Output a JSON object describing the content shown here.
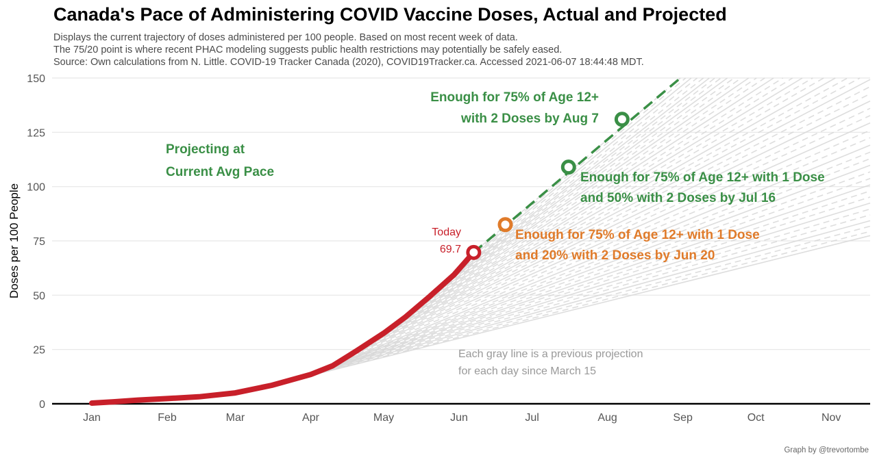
{
  "title": "Canada's Pace of Administering COVID Vaccine Doses, Actual and Projected",
  "subtitle_lines": [
    "Displays the current trajectory of doses administered per 100 people. Based on most recent week of data.",
    "The 75/20 point is where recent PHAC modeling suggests public health restrictions may potentially be safely eased.",
    "Source: Own calculations from N. Little. COVID-19 Tracker Canada (2020), COVID19Tracker.ca. Accessed 2021-06-07 18:44:48 MDT."
  ],
  "credit": "Graph by @trevortombe",
  "colors": {
    "actual": "#c8202a",
    "projection": "#3a8f46",
    "milestone_orange": "#e07b2a",
    "previous": "#d8d8d8",
    "grid": "#e6e6e6"
  },
  "chart_data": {
    "type": "line",
    "ylabel": "Doses per 100 People",
    "xlabel": "",
    "ylim": [
      0,
      150
    ],
    "yticks": [
      0,
      25,
      50,
      75,
      100,
      125,
      150
    ],
    "x_ticks": [
      {
        "label": "Jan",
        "day": 1
      },
      {
        "label": "Feb",
        "day": 32
      },
      {
        "label": "Mar",
        "day": 60
      },
      {
        "label": "Apr",
        "day": 91
      },
      {
        "label": "May",
        "day": 121
      },
      {
        "label": "Jun",
        "day": 152
      },
      {
        "label": "Jul",
        "day": 182
      },
      {
        "label": "Aug",
        "day": 213
      },
      {
        "label": "Sep",
        "day": 244
      },
      {
        "label": "Oct",
        "day": 274
      },
      {
        "label": "Nov",
        "day": 305
      }
    ],
    "series": [
      {
        "name": "Actual",
        "day": [
          1,
          10,
          20,
          32,
          45,
          60,
          75,
          91,
          100,
          110,
          121,
          130,
          140,
          150,
          158
        ],
        "doses": [
          0.3,
          0.9,
          1.7,
          2.4,
          3.2,
          5.0,
          8.5,
          13.5,
          17.5,
          24.5,
          32.5,
          40.0,
          49.5,
          59.5,
          69.7
        ]
      }
    ],
    "projection": {
      "start": [
        158,
        69.7
      ],
      "end": [
        243,
        150
      ]
    },
    "previous_projections": {
      "count": 48,
      "start_day": 74,
      "end_day": 158
    },
    "today": {
      "label": "Today",
      "value": "69.7",
      "day": 158,
      "doses": 69.7
    },
    "milestones": [
      {
        "day": 171,
        "doses": 82.5,
        "color": "orange",
        "lines": [
          "Enough for 75% of Age 12+ with 1 Dose",
          "and 20% with 2 Doses by Jun 20"
        ]
      },
      {
        "day": 197,
        "doses": 109.0,
        "color": "green",
        "lines": [
          "Enough for 75% of Age 12+ with 1 Dose",
          "and 50% with 2 Doses by Jul 16"
        ]
      },
      {
        "day": 219,
        "doses": 131.0,
        "color": "green",
        "lines": [
          "Enough for 75% of Age 12+",
          "with 2 Doses by Aug 7"
        ]
      }
    ],
    "annotations": {
      "projecting": [
        "Projecting at",
        "Current Avg Pace"
      ],
      "gray_note": [
        "Each gray line is a previous projection",
        "for each day since March 15"
      ]
    }
  }
}
